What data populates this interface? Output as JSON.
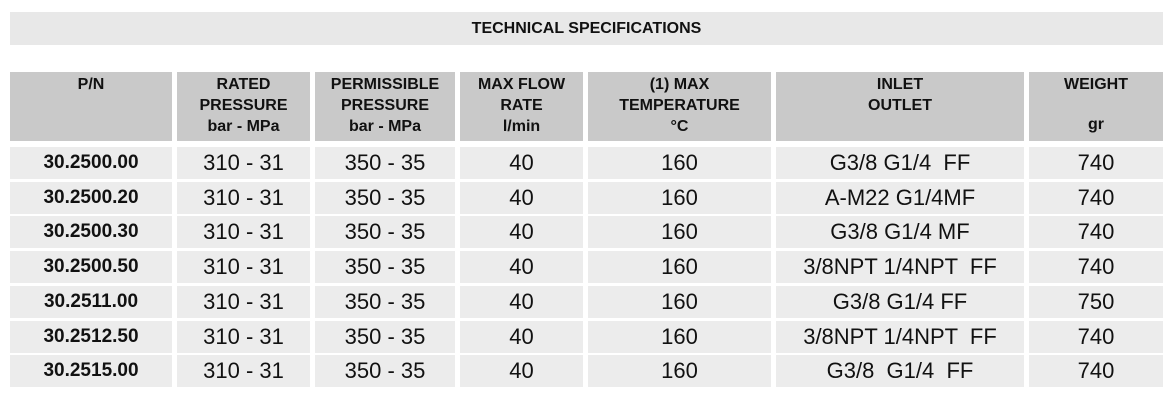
{
  "title": "TECHNICAL SPECIFICATIONS",
  "table": {
    "header": [
      [
        "P/N"
      ],
      [
        "RATED",
        "PRESSURE",
        "bar - MPa"
      ],
      [
        "PERMISSIBLE",
        "PRESSURE",
        "bar - MPa"
      ],
      [
        "MAX FLOW",
        "RATE",
        "l/min"
      ],
      [
        "(1) MAX",
        "TEMPERATURE",
        "°C"
      ],
      [
        "INLET",
        "OUTLET"
      ],
      [
        "WEIGHT",
        "gr"
      ]
    ],
    "rows": [
      [
        "30.2500.00",
        "310 - 31",
        "350 - 35",
        40,
        160,
        "G3/8 G1/4  FF",
        740
      ],
      [
        "30.2500.20",
        "310 - 31",
        "350 - 35",
        40,
        160,
        "A-M22 G1/4MF",
        740
      ],
      [
        "30.2500.30",
        "310 - 31",
        "350 - 35",
        40,
        160,
        "G3/8 G1/4 MF",
        740
      ],
      [
        "30.2500.50",
        "310 - 31",
        "350 - 35",
        40,
        160,
        "3/8NPT 1/4NPT  FF",
        740
      ],
      [
        "30.2511.00",
        "310 - 31",
        "350 - 35",
        40,
        160,
        "G3/8 G1/4 FF",
        750
      ],
      [
        "30.2512.50",
        "310 - 31",
        "350 - 35",
        40,
        160,
        "3/8NPT 1/4NPT  FF",
        740
      ],
      [
        "30.2515.00",
        "310 - 31",
        "350 - 35",
        40,
        160,
        "G3/8  G1/4  FF",
        740
      ]
    ]
  }
}
